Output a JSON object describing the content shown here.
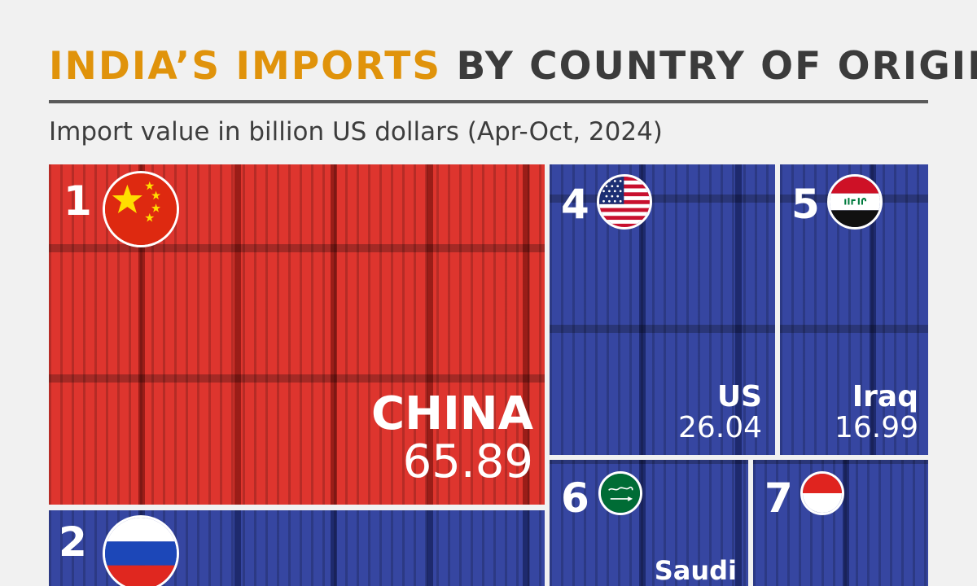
{
  "title": {
    "highlight": "INDIA’S IMPORTS",
    "rest": " BY COUNTRY OF ORIGIN"
  },
  "subtitle": "Import value in billion US dollars (Apr-Oct, 2024)",
  "colors": {
    "title_accent": "#e0930b",
    "title_text": "#3b3b3b",
    "tile_red": "#dc2a23",
    "tile_blue": "#2b3c9c"
  },
  "chart_data": {
    "type": "treemap",
    "units": "billion US dollars",
    "items": [
      {
        "rank": "1",
        "name": "CHINA",
        "value": "65.89",
        "flag_icon": "china-flag-icon",
        "color": "#dc2a23"
      },
      {
        "rank": "2",
        "name": "",
        "value": "",
        "flag_icon": "russia-flag-icon",
        "color": "#2b3c9c"
      },
      {
        "rank": "4",
        "name": "US",
        "value": "26.04",
        "flag_icon": "usa-flag-icon",
        "color": "#2b3c9c"
      },
      {
        "rank": "5",
        "name": "Iraq",
        "value": "16.99",
        "flag_icon": "iraq-flag-icon",
        "color": "#2b3c9c"
      },
      {
        "rank": "6",
        "name": "Saudi",
        "value": "",
        "flag_icon": "saudi-arabia-flag-icon",
        "color": "#2b3c9c"
      },
      {
        "rank": "7",
        "name": "",
        "value": "",
        "flag_icon": "indonesia-flag-icon",
        "color": "#2b3c9c"
      }
    ]
  }
}
